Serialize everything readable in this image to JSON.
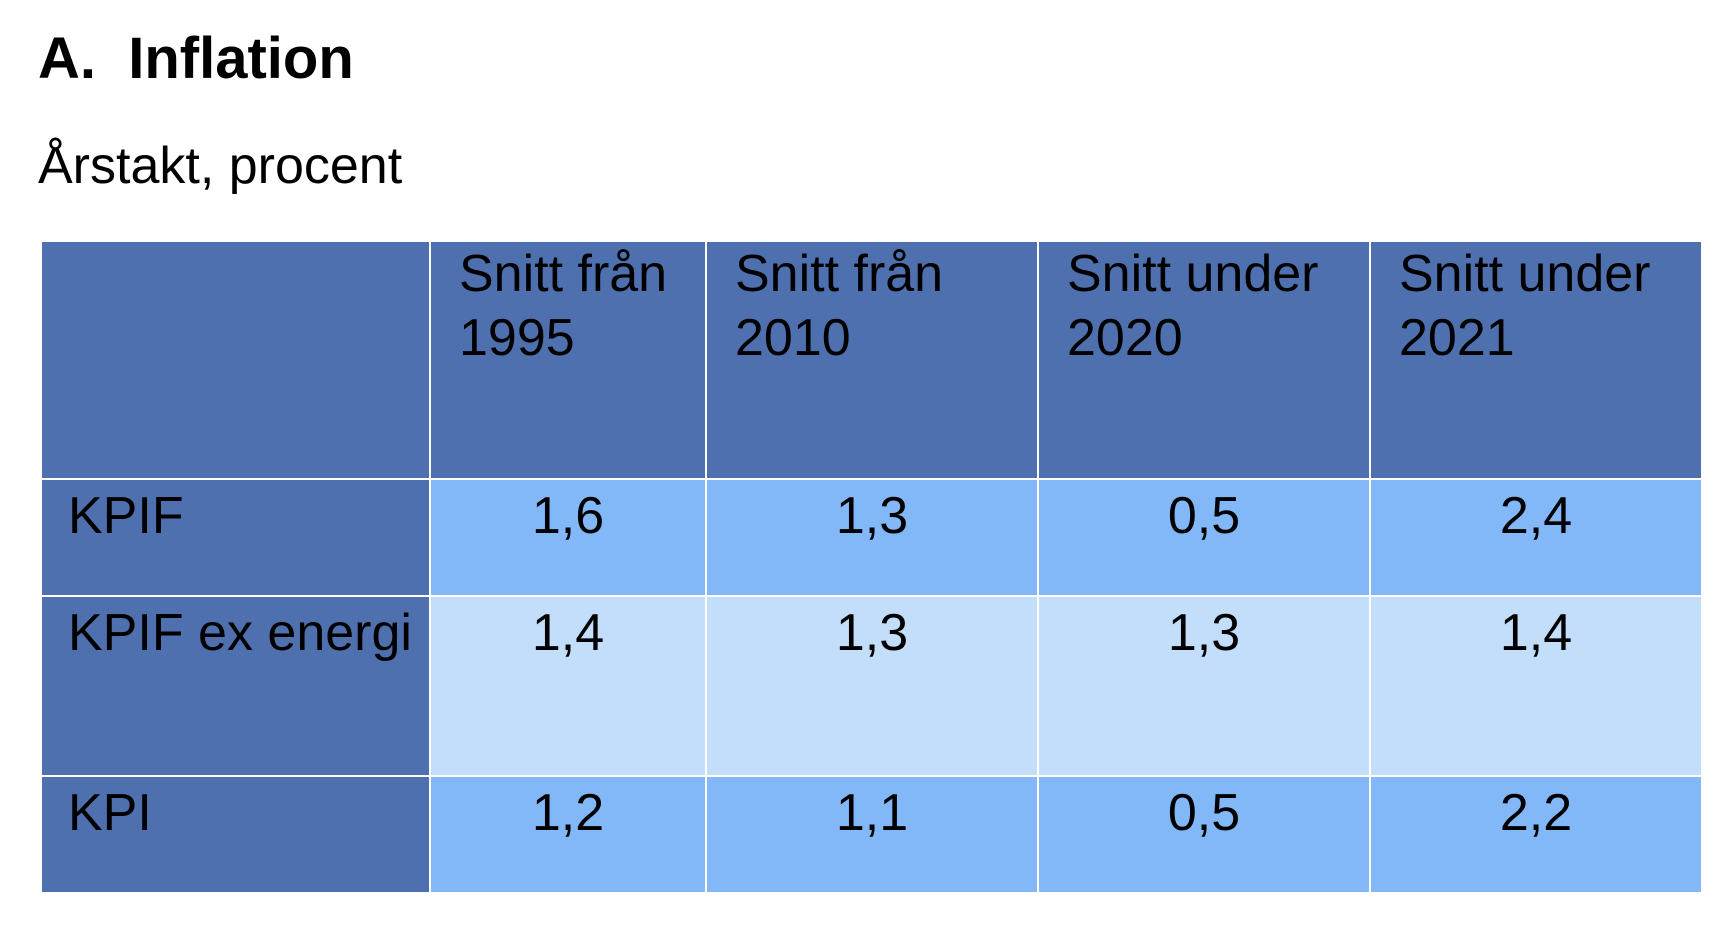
{
  "title": "A.  Inflation",
  "subtitle": "Årstakt, procent",
  "chart_data": {
    "type": "table",
    "title": "A.  Inflation",
    "subtitle": "Årstakt, procent",
    "corner_header": "",
    "columns": [
      "Snitt från 1995",
      "Snitt från 2010",
      "Snitt under 2020",
      "Snitt under 2021"
    ],
    "rows": [
      {
        "label": "KPIF",
        "values": [
          "1,6",
          "1,3",
          "0,5",
          "2,4"
        ]
      },
      {
        "label": "KPIF ex energi",
        "values": [
          "1,4",
          "1,3",
          "1,3",
          "1,4"
        ]
      },
      {
        "label": "KPI",
        "values": [
          "1,2",
          "1,1",
          "0,5",
          "2,2"
        ]
      }
    ]
  },
  "colors": {
    "header_background": "#4f70ae",
    "row_label_background": "#4f70ae",
    "cell_dark": "#82b8f7",
    "cell_light": "#c2defa",
    "grid_lines": "#ffffff"
  }
}
